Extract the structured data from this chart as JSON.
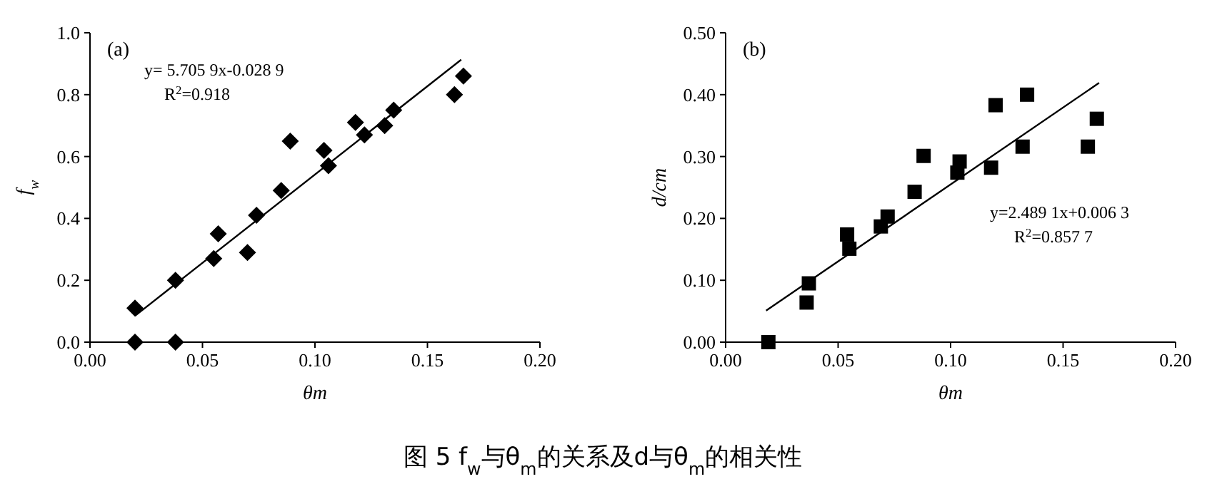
{
  "chart_data": [
    {
      "type": "scatter",
      "xlabel": "θm",
      "ylabel": "f$_{w}$",
      "xlim": [
        0,
        0.2
      ],
      "ylim": [
        0,
        1
      ],
      "xticks": [
        {
          "value": 0,
          "label": "0.00"
        },
        {
          "value": 0.05,
          "label": "0.05"
        },
        {
          "value": 0.1,
          "label": "0.10"
        },
        {
          "value": 0.15,
          "label": "0.15"
        },
        {
          "value": 0.2,
          "label": "0.20"
        }
      ],
      "yticks": [
        {
          "value": 0,
          "label": "0.0"
        },
        {
          "value": 0.2,
          "label": "0.2"
        },
        {
          "value": 0.4,
          "label": "0.4"
        },
        {
          "value": 0.6,
          "label": "0.6"
        },
        {
          "value": 0.8,
          "label": "0.8"
        },
        {
          "value": 1,
          "label": "1.0"
        }
      ],
      "series": [
        {
          "marker": "diamond",
          "color": "#000000",
          "x": [
            0.02,
            0.02,
            0.038,
            0.038,
            0.055,
            0.057,
            0.07,
            0.074,
            0.085,
            0.089,
            0.104,
            0.106,
            0.118,
            0.122,
            0.131,
            0.135,
            0.162,
            0.166
          ],
          "values": [
            0.11,
            0,
            0.2,
            0,
            0.27,
            0.35,
            0.29,
            0.41,
            0.49,
            0.65,
            0.62,
            0.57,
            0.71,
            0.67,
            0.7,
            0.75,
            0.8,
            0.86
          ]
        },
        {
          "type": "line",
          "color": "#000000",
          "marker": "none",
          "line_style": "solid",
          "x": [
            0.02,
            0.165
          ],
          "values": [
            0.085,
            0.913
          ]
        }
      ],
      "annotations": [
        "(a)",
        "y= 5.705 9x-0.028 9",
        "R$^{2}$=0.918",
        "图 5 f$_{w}$与θ$_{m}$的关系及d与θ$_{m}$的相关性"
      ]
    },
    {
      "type": "scatter",
      "xlabel": "θm",
      "ylabel": "d/cm",
      "xlim": [
        0,
        0.2
      ],
      "ylim": [
        0,
        0.5
      ],
      "xticks": [
        {
          "value": 0,
          "label": "0.00"
        },
        {
          "value": 0.05,
          "label": "0.05"
        },
        {
          "value": 0.1,
          "label": "0.10"
        },
        {
          "value": 0.15,
          "label": "0.15"
        },
        {
          "value": 0.2,
          "label": "0.20"
        }
      ],
      "yticks": [
        {
          "value": 0,
          "label": "0.00"
        },
        {
          "value": 0.1,
          "label": "0.10"
        },
        {
          "value": 0.2,
          "label": "0.20"
        },
        {
          "value": 0.3,
          "label": "0.30"
        },
        {
          "value": 0.4,
          "label": "0.40"
        },
        {
          "value": 0.5,
          "label": "0.50"
        }
      ],
      "series": [
        {
          "marker": "square",
          "color": "#000000",
          "x": [
            0.019,
            0.036,
            0.037,
            0.054,
            0.055,
            0.069,
            0.072,
            0.084,
            0.088,
            0.103,
            0.104,
            0.118,
            0.12,
            0.132,
            0.134,
            0.161,
            0.165
          ],
          "values": [
            0,
            0.064,
            0.095,
            0.174,
            0.151,
            0.187,
            0.203,
            0.243,
            0.301,
            0.274,
            0.292,
            0.282,
            0.383,
            0.316,
            0.4,
            0.316,
            0.361
          ]
        },
        {
          "type": "line",
          "color": "#000000",
          "marker": "none",
          "line_style": "solid",
          "x": [
            0.018,
            0.166
          ],
          "values": [
            0.051,
            0.419
          ]
        }
      ],
      "annotations": [
        "(b)",
        "y=2.489 1x+0.006 3",
        "R$^{2}$=0.857 7"
      ]
    }
  ]
}
